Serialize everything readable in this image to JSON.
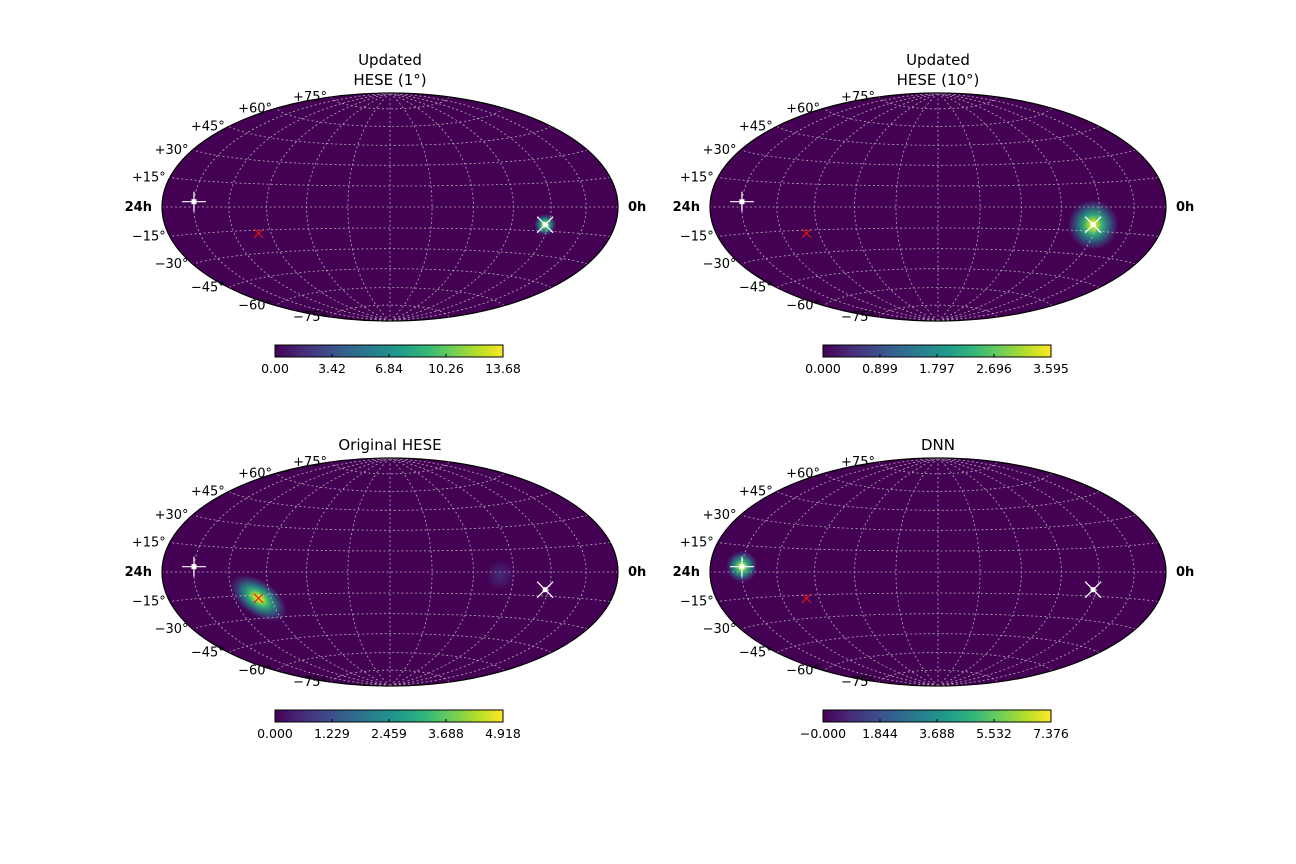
{
  "figure": {
    "background": "#ffffff",
    "map_background": "#440154",
    "grid_color": "#cccccc",
    "colormap": "viridis"
  },
  "chart_data": [
    {
      "type": "heatmap",
      "projection": "hammer-aitoff",
      "title_lines": [
        "Updated",
        "HESE (1°)"
      ],
      "ra_labels": {
        "left": "24h",
        "right": "0h"
      },
      "lat_labels": [
        "+75°",
        "+60°",
        "+45°",
        "+30°",
        "+15°",
        "−15°",
        "−30°",
        "−45°",
        "−60°",
        "−75°"
      ],
      "blobs": [
        {
          "lon_deg": -117,
          "lat_deg": -11,
          "sigma_deg": 3.5,
          "peak": 13.68
        }
      ],
      "markers": [
        {
          "kind": "white-cross",
          "lon_deg": 150,
          "lat_deg": 3
        },
        {
          "kind": "white-x",
          "lon_deg": -117,
          "lat_deg": -11
        },
        {
          "kind": "red-x",
          "lon_deg": 100,
          "lat_deg": -17
        }
      ],
      "colorbar": {
        "min": 0.0,
        "max": 13.68,
        "ticks": [
          "0.00",
          "3.42",
          "6.84",
          "10.26",
          "13.68"
        ]
      }
    },
    {
      "type": "heatmap",
      "projection": "hammer-aitoff",
      "title_lines": [
        "Updated",
        "HESE (10°)"
      ],
      "ra_labels": {
        "left": "24h",
        "right": "0h"
      },
      "lat_labels": [
        "+75°",
        "+60°",
        "+45°",
        "+30°",
        "+15°",
        "−15°",
        "−30°",
        "−45°",
        "−60°",
        "−75°"
      ],
      "blobs": [
        {
          "lon_deg": -117,
          "lat_deg": -11,
          "sigma_deg": 8,
          "peak": 3.595
        }
      ],
      "markers": [
        {
          "kind": "white-cross",
          "lon_deg": 150,
          "lat_deg": 3
        },
        {
          "kind": "white-x",
          "lon_deg": -117,
          "lat_deg": -11
        },
        {
          "kind": "red-x",
          "lon_deg": 100,
          "lat_deg": -17
        }
      ],
      "colorbar": {
        "min": 0.0,
        "max": 3.595,
        "ticks": [
          "0.000",
          "0.899",
          "1.797",
          "2.696",
          "3.595"
        ]
      }
    },
    {
      "type": "heatmap",
      "projection": "hammer-aitoff",
      "title_lines": [
        "Original HESE"
      ],
      "ra_labels": {
        "left": "24h",
        "right": "0h"
      },
      "lat_labels": [
        "+75°",
        "+60°",
        "+45°",
        "+30°",
        "+15°",
        "−15°",
        "−30°",
        "−45°",
        "−60°",
        "−75°"
      ],
      "blobs": [
        {
          "lon_deg": 100,
          "lat_deg": -17,
          "sigma_deg": 7,
          "peak": 4.918,
          "elongated": true
        },
        {
          "lon_deg": -80,
          "lat_deg": -2,
          "sigma_deg": 5,
          "peak": 0.6
        }
      ],
      "markers": [
        {
          "kind": "white-cross",
          "lon_deg": 150,
          "lat_deg": 3
        },
        {
          "kind": "white-x",
          "lon_deg": -117,
          "lat_deg": -11
        },
        {
          "kind": "red-x",
          "lon_deg": 100,
          "lat_deg": -17
        }
      ],
      "colorbar": {
        "min": 0.0,
        "max": 4.918,
        "ticks": [
          "0.000",
          "1.229",
          "2.459",
          "3.688",
          "4.918"
        ]
      }
    },
    {
      "type": "heatmap",
      "projection": "hammer-aitoff",
      "title_lines": [
        "DNN"
      ],
      "ra_labels": {
        "left": "24h",
        "right": "0h"
      },
      "lat_labels": [
        "+75°",
        "+60°",
        "+45°",
        "+30°",
        "+15°",
        "−15°",
        "−30°",
        "−45°",
        "−60°",
        "−75°"
      ],
      "blobs": [
        {
          "lon_deg": 150,
          "lat_deg": 3,
          "sigma_deg": 5,
          "peak": 7.376
        }
      ],
      "markers": [
        {
          "kind": "white-cross",
          "lon_deg": 150,
          "lat_deg": 3
        },
        {
          "kind": "white-x",
          "lon_deg": -117,
          "lat_deg": -11
        },
        {
          "kind": "red-x",
          "lon_deg": 100,
          "lat_deg": -17
        }
      ],
      "colorbar": {
        "min": -0.0,
        "max": 7.376,
        "ticks": [
          "−0.000",
          "1.844",
          "3.688",
          "5.532",
          "7.376"
        ]
      }
    }
  ]
}
